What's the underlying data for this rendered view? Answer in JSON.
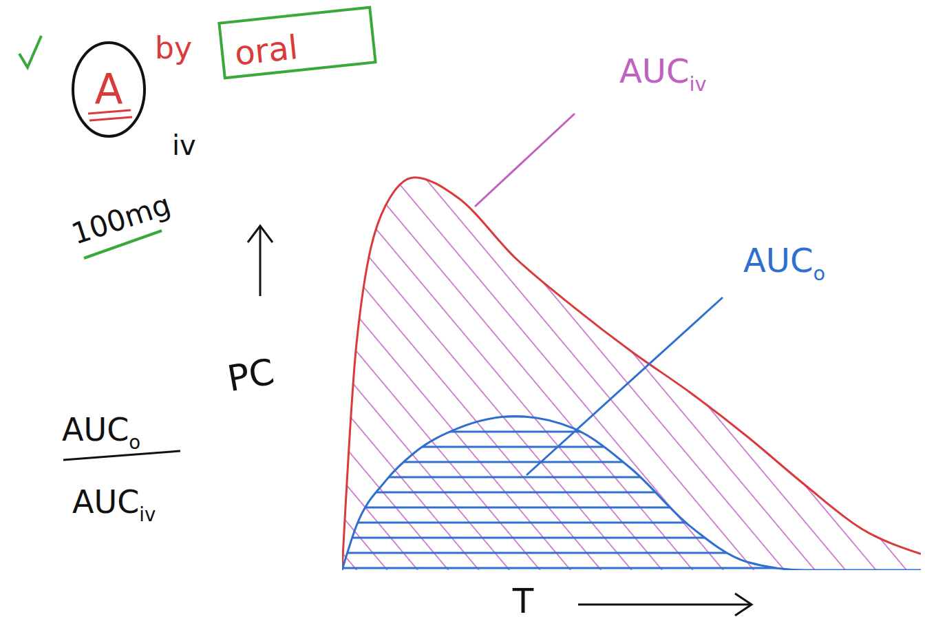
{
  "chart_data": {
    "type": "area",
    "x_label": "T",
    "y_label": "PC",
    "x": [
      0,
      0.25,
      0.75,
      1.25,
      2,
      3,
      4,
      5,
      6,
      7,
      8,
      9,
      10
    ],
    "series": [
      {
        "name": "AUCiv",
        "color": "#d93a3a",
        "values": [
          0,
          5.6,
          9.0,
          9.7,
          9.2,
          7.7,
          6.5,
          5.4,
          4.4,
          3.3,
          2.1,
          1.0,
          0.4
        ]
      },
      {
        "name": "AUCo",
        "color": "#2f6fd0",
        "values": [
          0,
          1.1,
          2.2,
          2.9,
          3.5,
          3.8,
          3.5,
          2.5,
          1.1,
          0.2,
          0,
          0,
          0
        ]
      }
    ],
    "xlim": [
      0,
      10
    ],
    "ylim": [
      0,
      10
    ],
    "tick_labels": false,
    "grid": false,
    "annotations": {
      "header": [
        "A",
        "by",
        "oral"
      ],
      "dose": [
        "100mg",
        "iv"
      ],
      "fraction": {
        "numerator": "AUCo",
        "denominator": "AUCiv"
      }
    }
  }
}
